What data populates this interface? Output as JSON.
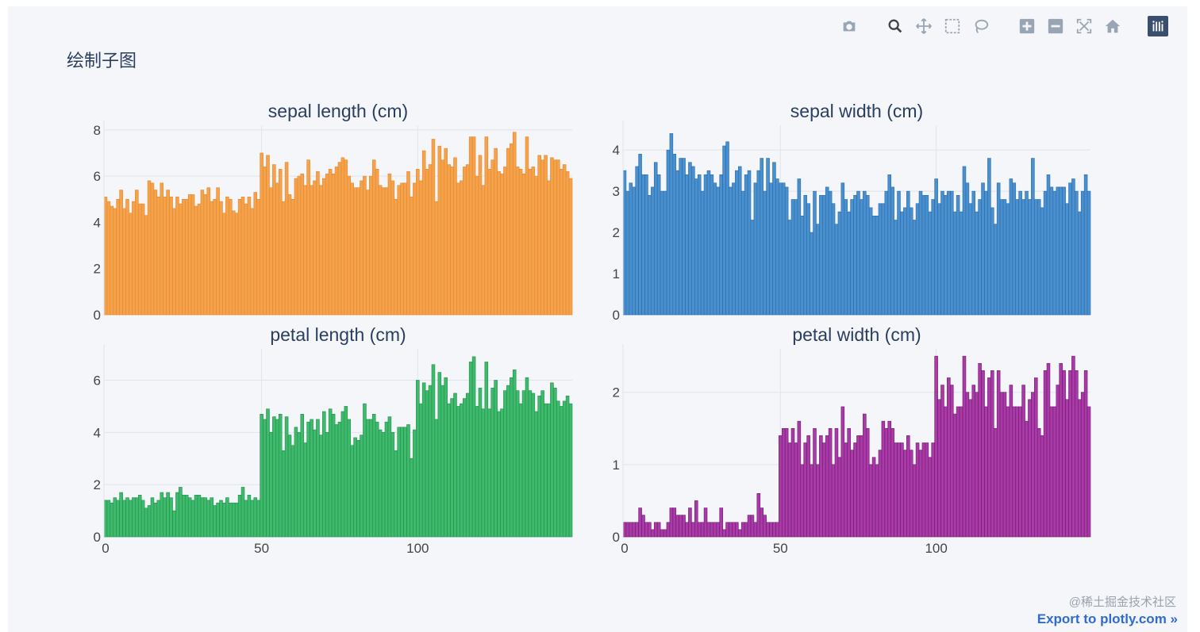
{
  "page": {
    "title": "绘制子图",
    "export_label": "Export to plotly.com »",
    "watermark": "@稀土掘金技术社区"
  },
  "toolbar": [
    {
      "name": "camera-icon",
      "label": "Download plot as png"
    },
    {
      "name": "zoom-icon",
      "label": "Zoom",
      "active": true
    },
    {
      "name": "pan-icon",
      "label": "Pan"
    },
    {
      "name": "box-select-icon",
      "label": "Box Select"
    },
    {
      "name": "lasso-select-icon",
      "label": "Lasso Select"
    },
    {
      "name": "zoom-in-icon",
      "label": "Zoom in"
    },
    {
      "name": "zoom-out-icon",
      "label": "Zoom out"
    },
    {
      "name": "autoscale-icon",
      "label": "Autoscale"
    },
    {
      "name": "home-icon",
      "label": "Reset axes"
    },
    {
      "name": "plotly-logo-icon",
      "label": "Produced with Plotly"
    }
  ],
  "chart_data": [
    {
      "type": "bar",
      "title": "sepal length (cm)",
      "color": "#f4a24c",
      "line_color": "#e8872a",
      "ylim": [
        0,
        8.2
      ],
      "yticks": [
        0,
        2,
        4,
        6,
        8
      ],
      "xticks": [
        0,
        50,
        100
      ],
      "show_xticks": false,
      "values": [
        5.1,
        4.9,
        4.7,
        4.6,
        5.0,
        5.4,
        4.6,
        5.0,
        4.4,
        4.9,
        5.4,
        4.8,
        4.8,
        4.3,
        5.8,
        5.7,
        5.4,
        5.1,
        5.7,
        5.1,
        5.4,
        5.1,
        4.6,
        5.1,
        4.8,
        5.0,
        5.0,
        5.2,
        5.2,
        4.7,
        4.8,
        5.4,
        5.2,
        5.5,
        4.9,
        5.0,
        5.5,
        4.9,
        4.4,
        5.1,
        5.0,
        4.5,
        4.4,
        5.0,
        5.1,
        4.8,
        5.1,
        4.6,
        5.3,
        5.0,
        7.0,
        6.4,
        6.9,
        5.5,
        6.5,
        5.7,
        6.3,
        4.9,
        6.6,
        5.2,
        5.0,
        5.9,
        6.0,
        6.1,
        5.6,
        6.7,
        5.6,
        5.8,
        6.2,
        5.6,
        5.9,
        6.1,
        6.3,
        6.1,
        6.4,
        6.6,
        6.8,
        6.7,
        6.0,
        5.7,
        5.5,
        5.5,
        5.8,
        6.0,
        5.4,
        6.0,
        6.7,
        6.3,
        5.6,
        5.5,
        5.5,
        6.1,
        5.8,
        5.0,
        5.6,
        5.7,
        5.7,
        6.2,
        5.1,
        5.7,
        6.3,
        5.8,
        7.1,
        6.3,
        6.5,
        7.6,
        4.9,
        7.3,
        6.7,
        7.2,
        6.5,
        6.4,
        6.8,
        5.7,
        5.8,
        6.4,
        6.5,
        7.7,
        7.7,
        6.0,
        6.9,
        5.6,
        7.7,
        6.3,
        6.7,
        7.2,
        6.2,
        6.1,
        6.4,
        7.2,
        7.4,
        7.9,
        6.4,
        6.3,
        6.1,
        7.7,
        6.3,
        6.4,
        6.0,
        6.9,
        6.7,
        6.9,
        5.8,
        6.8,
        6.7,
        6.7,
        6.3,
        6.5,
        6.2,
        5.9
      ]
    },
    {
      "type": "bar",
      "title": "sepal width (cm)",
      "color": "#4a90cf",
      "line_color": "#2a6ba8",
      "ylim": [
        0,
        4.6
      ],
      "yticks": [
        0,
        1,
        2,
        3,
        4
      ],
      "xticks": [
        0,
        50,
        100
      ],
      "show_xticks": false,
      "values": [
        3.5,
        3.0,
        3.2,
        3.1,
        3.6,
        3.9,
        3.4,
        3.4,
        2.9,
        3.1,
        3.7,
        3.4,
        3.0,
        3.0,
        4.0,
        4.4,
        3.9,
        3.5,
        3.8,
        3.8,
        3.4,
        3.7,
        3.6,
        3.3,
        3.4,
        3.0,
        3.4,
        3.5,
        3.4,
        3.2,
        3.1,
        3.4,
        4.1,
        4.2,
        3.1,
        3.2,
        3.5,
        3.6,
        3.0,
        3.4,
        3.5,
        2.3,
        3.2,
        3.5,
        3.8,
        3.0,
        3.8,
        3.2,
        3.7,
        3.3,
        3.2,
        3.2,
        3.1,
        2.3,
        2.8,
        2.8,
        3.3,
        2.4,
        2.9,
        2.7,
        2.0,
        3.0,
        2.2,
        2.9,
        2.9,
        3.1,
        3.0,
        2.7,
        2.2,
        2.5,
        3.2,
        2.8,
        2.5,
        2.8,
        2.9,
        3.0,
        2.8,
        3.0,
        2.9,
        2.6,
        2.4,
        2.4,
        2.7,
        2.7,
        3.0,
        3.4,
        3.1,
        2.3,
        3.0,
        2.5,
        2.6,
        3.0,
        2.6,
        2.3,
        2.7,
        3.0,
        2.9,
        2.9,
        2.5,
        2.8,
        3.3,
        2.7,
        3.0,
        2.9,
        3.0,
        3.0,
        2.5,
        2.9,
        2.5,
        3.6,
        3.2,
        2.7,
        3.0,
        2.5,
        2.8,
        3.2,
        3.0,
        3.8,
        2.6,
        2.2,
        3.2,
        2.8,
        2.8,
        2.7,
        3.3,
        3.2,
        2.8,
        3.0,
        2.8,
        3.0,
        2.8,
        3.8,
        2.8,
        2.8,
        2.6,
        3.0,
        3.4,
        3.1,
        3.0,
        3.1,
        3.1,
        3.1,
        2.7,
        3.2,
        3.3,
        3.0,
        2.5,
        3.0,
        3.4,
        3.0
      ]
    },
    {
      "type": "bar",
      "title": "petal length (cm)",
      "color": "#3fba6d",
      "line_color": "#1f8f4a",
      "ylim": [
        0,
        7.2
      ],
      "yticks": [
        0,
        2,
        4,
        6
      ],
      "xticks": [
        0,
        50,
        100
      ],
      "show_xticks": true,
      "values": [
        1.4,
        1.4,
        1.3,
        1.5,
        1.4,
        1.7,
        1.4,
        1.5,
        1.4,
        1.5,
        1.5,
        1.6,
        1.4,
        1.1,
        1.2,
        1.5,
        1.3,
        1.4,
        1.7,
        1.5,
        1.7,
        1.5,
        1.0,
        1.7,
        1.9,
        1.6,
        1.6,
        1.5,
        1.4,
        1.6,
        1.6,
        1.5,
        1.5,
        1.4,
        1.5,
        1.2,
        1.3,
        1.4,
        1.3,
        1.5,
        1.3,
        1.3,
        1.3,
        1.6,
        1.9,
        1.4,
        1.6,
        1.4,
        1.5,
        1.4,
        4.7,
        4.5,
        4.9,
        4.0,
        4.6,
        4.5,
        4.7,
        3.3,
        4.6,
        3.9,
        3.5,
        4.2,
        4.0,
        4.7,
        3.6,
        4.4,
        4.5,
        4.1,
        4.5,
        3.9,
        4.8,
        4.0,
        4.9,
        4.7,
        4.3,
        4.4,
        4.8,
        5.0,
        4.5,
        3.5,
        3.8,
        3.7,
        3.9,
        5.1,
        4.5,
        4.5,
        4.7,
        4.4,
        4.1,
        4.0,
        4.4,
        4.6,
        4.0,
        3.3,
        4.2,
        4.2,
        4.2,
        4.3,
        3.0,
        4.1,
        6.0,
        5.1,
        5.9,
        5.6,
        5.8,
        6.6,
        4.5,
        6.3,
        5.8,
        6.1,
        5.1,
        5.3,
        5.5,
        5.0,
        5.1,
        5.3,
        5.5,
        6.7,
        6.9,
        5.0,
        5.7,
        4.9,
        6.7,
        4.9,
        5.7,
        6.0,
        4.8,
        4.9,
        5.6,
        5.8,
        6.1,
        6.4,
        5.6,
        5.1,
        5.6,
        6.1,
        5.6,
        5.5,
        4.8,
        5.4,
        5.6,
        5.1,
        5.1,
        5.9,
        5.7,
        5.2,
        5.0,
        5.2,
        5.4,
        5.1
      ]
    },
    {
      "type": "bar",
      "title": "petal width (cm)",
      "color": "#a93aa8",
      "line_color": "#6e1a6d",
      "ylim": [
        0,
        2.6
      ],
      "yticks": [
        0,
        1,
        2
      ],
      "xticks": [
        0,
        50,
        100
      ],
      "show_xticks": true,
      "values": [
        0.2,
        0.2,
        0.2,
        0.2,
        0.2,
        0.4,
        0.3,
        0.2,
        0.2,
        0.1,
        0.2,
        0.2,
        0.1,
        0.1,
        0.2,
        0.4,
        0.4,
        0.3,
        0.3,
        0.3,
        0.2,
        0.4,
        0.2,
        0.5,
        0.2,
        0.2,
        0.4,
        0.2,
        0.2,
        0.2,
        0.2,
        0.4,
        0.1,
        0.2,
        0.2,
        0.2,
        0.2,
        0.1,
        0.2,
        0.2,
        0.3,
        0.3,
        0.2,
        0.6,
        0.4,
        0.3,
        0.2,
        0.2,
        0.2,
        0.2,
        1.4,
        1.5,
        1.5,
        1.3,
        1.5,
        1.3,
        1.6,
        1.0,
        1.3,
        1.4,
        1.0,
        1.5,
        1.0,
        1.4,
        1.3,
        1.4,
        1.5,
        1.0,
        1.5,
        1.1,
        1.8,
        1.3,
        1.5,
        1.2,
        1.3,
        1.4,
        1.4,
        1.7,
        1.5,
        1.0,
        1.1,
        1.0,
        1.2,
        1.6,
        1.5,
        1.6,
        1.5,
        1.3,
        1.3,
        1.3,
        1.2,
        1.4,
        1.2,
        1.0,
        1.3,
        1.2,
        1.3,
        1.3,
        1.1,
        1.3,
        2.5,
        1.9,
        2.1,
        1.8,
        2.2,
        2.1,
        1.7,
        1.8,
        1.8,
        2.5,
        2.0,
        1.9,
        2.1,
        2.0,
        2.4,
        2.3,
        1.8,
        2.2,
        2.3,
        1.5,
        2.3,
        2.0,
        2.0,
        1.8,
        2.1,
        1.8,
        1.8,
        1.8,
        2.1,
        1.6,
        1.9,
        2.0,
        2.2,
        1.5,
        1.4,
        2.3,
        2.4,
        1.8,
        1.8,
        2.1,
        2.4,
        2.3,
        1.9,
        2.3,
        2.5,
        2.3,
        1.9,
        2.0,
        2.3,
        1.8
      ]
    }
  ]
}
